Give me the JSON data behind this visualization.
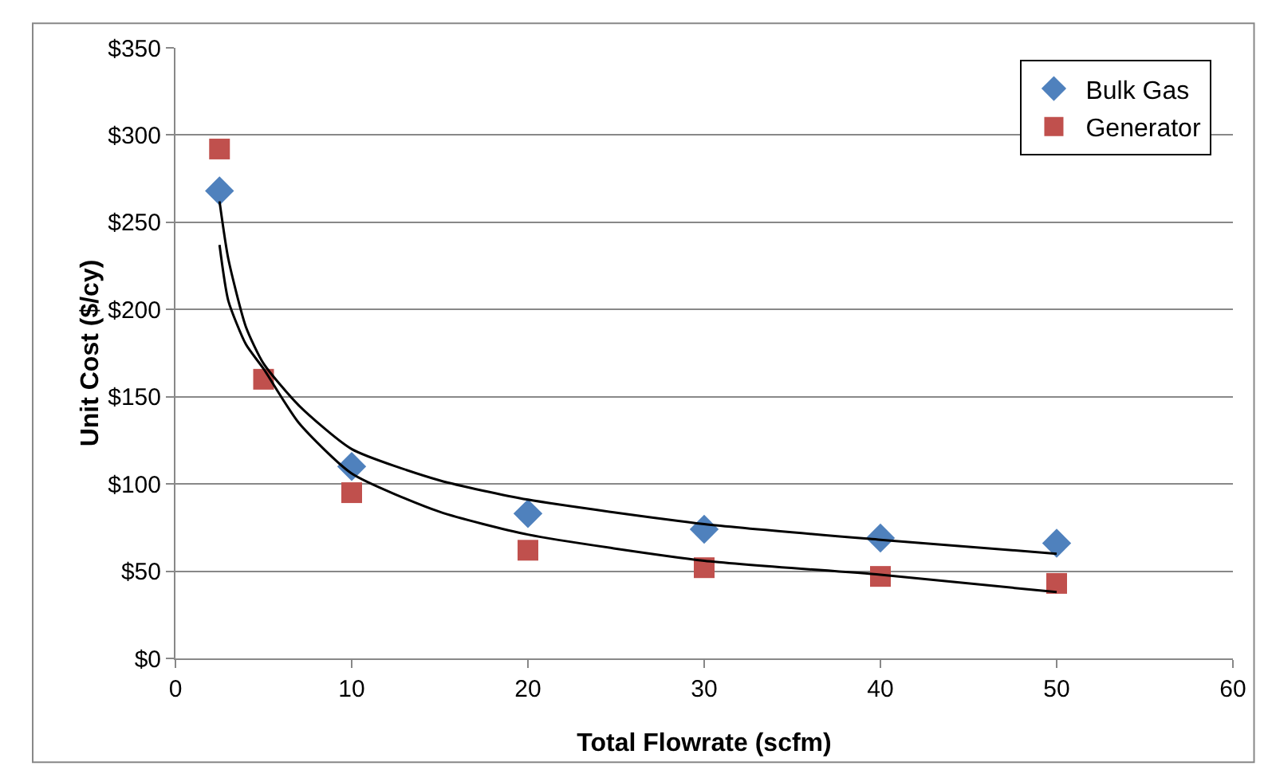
{
  "chart_data": {
    "type": "scatter",
    "xlabel": "Total Flowrate (scfm)",
    "ylabel": "Unit Cost ($/cy)",
    "x": [
      2.5,
      5,
      10,
      20,
      30,
      40,
      50
    ],
    "series": [
      {
        "name": "Bulk Gas",
        "color": "#4f81bd",
        "marker": "diamond",
        "values": [
          268,
          null,
          110,
          83,
          74,
          69,
          66
        ]
      },
      {
        "name": "Generator",
        "color": "#c0504d",
        "marker": "square",
        "values": [
          292,
          160,
          95,
          62,
          52,
          47,
          43
        ]
      },
      {
        "type": "line",
        "color": "#000000",
        "marker": "none",
        "x": [
          2.5,
          3,
          4,
          5,
          7,
          10,
          15,
          20,
          30,
          40,
          50
        ],
        "values": [
          262,
          229,
          190,
          169,
          145,
          120,
          102,
          91,
          77,
          68,
          60
        ]
      },
      {
        "type": "line",
        "color": "#000000",
        "marker": "none",
        "x": [
          2.5,
          3,
          4,
          5,
          7,
          10,
          15,
          20,
          30,
          40,
          50
        ],
        "values": [
          237,
          205,
          180,
          166,
          135,
          106,
          84,
          71,
          56,
          48,
          38
        ]
      }
    ],
    "xlim": [
      0,
      60
    ],
    "xticks": [
      0,
      10,
      20,
      30,
      40,
      50,
      60
    ],
    "ylim": [
      0,
      350
    ],
    "yticks": [
      {
        "value": 0,
        "label": "$0"
      },
      {
        "value": 50,
        "label": "$50"
      },
      {
        "value": 100,
        "label": "$100"
      },
      {
        "value": 150,
        "label": "$150"
      },
      {
        "value": 200,
        "label": "$200"
      },
      {
        "value": 250,
        "label": "$250"
      },
      {
        "value": 300,
        "label": "$300"
      },
      {
        "value": 350,
        "label": "$350"
      }
    ],
    "grid": "y",
    "legend": "top right"
  }
}
